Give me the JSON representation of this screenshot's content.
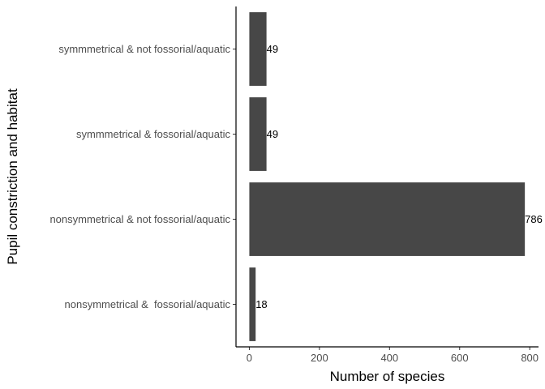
{
  "chart_data": {
    "type": "bar",
    "orientation": "horizontal",
    "categories": [
      "nonsymmetrical &  fossorial/aquatic",
      "nonsymmetrical & not fossorial/aquatic",
      "symmmetrical & fossorial/aquatic",
      "symmmetrical & not fossorial/aquatic"
    ],
    "values": [
      18,
      786,
      49,
      49
    ],
    "data_labels": [
      "18",
      "786",
      "49",
      "49"
    ],
    "xlabel": "Number of species",
    "ylabel": "Pupil constriction and habitat",
    "xlim": [
      -38,
      825
    ],
    "xticks": [
      0,
      200,
      400,
      600,
      800
    ],
    "grid": false,
    "legend": "none",
    "bar_color": "#474747"
  }
}
